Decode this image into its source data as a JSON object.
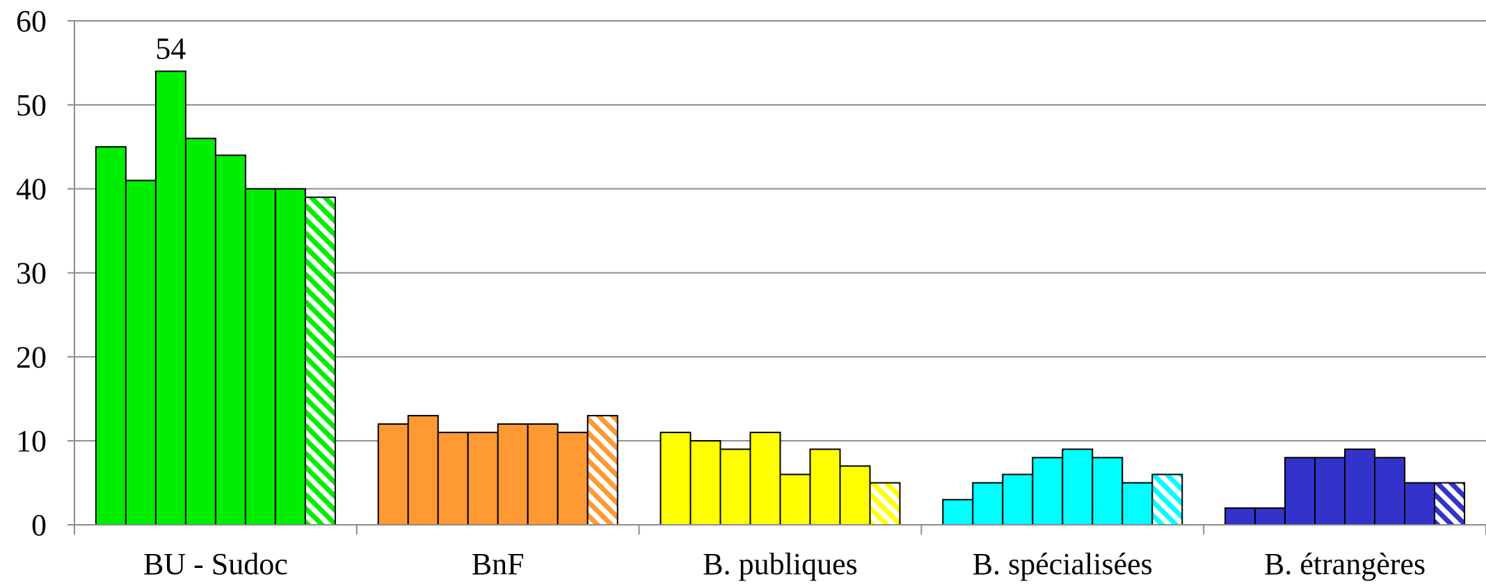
{
  "chart_data": {
    "type": "bar",
    "title": "",
    "xlabel": "",
    "ylabel": "",
    "ylim": [
      0,
      60
    ],
    "yticks": [
      0,
      10,
      20,
      30,
      40,
      50,
      60
    ],
    "grid": true,
    "legend": "none",
    "groups": [
      {
        "label": "BU - Sudoc",
        "color": "#00ee00",
        "values": [
          45,
          41,
          54,
          46,
          44,
          40,
          40,
          39
        ]
      },
      {
        "label": "BnF",
        "color": "#ff9933",
        "values": [
          12,
          13,
          11,
          11,
          12,
          12,
          11,
          13
        ]
      },
      {
        "label": "B. publiques",
        "color": "#ffff00",
        "values": [
          11,
          10,
          9,
          11,
          6,
          9,
          7,
          5
        ]
      },
      {
        "label": "B. spécialisées",
        "color": "#00ffff",
        "values": [
          3,
          5,
          6,
          8,
          9,
          8,
          5,
          6
        ]
      },
      {
        "label": "B. étrangères",
        "color": "#3333cc",
        "values": [
          2,
          2,
          8,
          8,
          9,
          8,
          5,
          5
        ]
      }
    ],
    "hatched_last_bar": true,
    "data_labels": [
      {
        "group": 0,
        "index": 2,
        "text": "54"
      }
    ]
  }
}
